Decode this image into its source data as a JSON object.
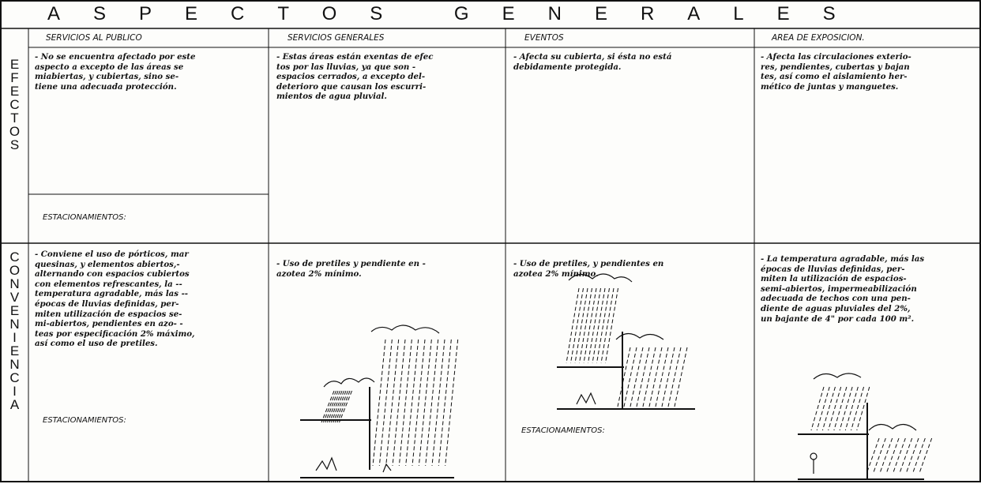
{
  "title": "ASPECTOS GENERALES",
  "headers": [
    "SERVICIOS AL PUBLICO",
    "SERVICIOS GENERALES",
    "EVENTOS",
    "AREA DE EXPOSICION."
  ],
  "rows": [
    {
      "label": "EFECTOS",
      "cells": [
        {
          "lines": [
            "- No se encuentra afectado por este",
            "aspecto a excepto de las áreas se",
            "miabiertas, y cubiertas, sino se-",
            "tiene una adecuada protección."
          ],
          "parking": "ESTACIONAMIENTOS:"
        },
        {
          "lines": [
            "- Estas áreas están exentas de efec",
            "tos por las lluvias, ya que son -",
            "espacios cerrados, a excepto del-",
            "deterioro que causan los escurri-",
            "mientos de agua pluvial."
          ]
        },
        {
          "lines": [
            "- Afecta su cubierta, si ésta no está",
            "debidamente protegida."
          ]
        },
        {
          "lines": [
            "- Afecta las circulaciones exterio-",
            "res, pendientes, cubertas y bajan",
            "tes, así como el aislamiento her-",
            "mético de juntas y manguetes."
          ]
        }
      ]
    },
    {
      "label": "CONVENIENCIA",
      "cells": [
        {
          "lines": [
            "- Conviene el uso de pórticos, mar",
            "quesinas, y elementos abiertos,-",
            "alternando con espacios cubiertos",
            "con elementos refrescantes, la --",
            "temperatura agradable, más las --",
            "épocas de lluvias definidas, per-",
            "miten utilización de espacios se-",
            "mi-abiertos, pendientes en azo- -",
            "teas por especificación 2% máximo,",
            "así como el uso de pretiles."
          ],
          "parking": "ESTACIONAMIENTOS:"
        },
        {
          "lines": [
            "- Uso de pretiles y pendiente en -",
            "azotea 2% mínimo."
          ]
        },
        {
          "lines": [
            "- Uso de pretiles, y pendientes en",
            "azotea 2% mínimo."
          ],
          "parking": "ESTACIONAMIENTOS:"
        },
        {
          "lines": [
            "- La temperatura agradable, más las",
            "épocas de lluvias definidas, per-",
            "miten la utilización de espacios-",
            "semi-abiertos, impermeabilización",
            "adecuada de techos con una pen-",
            "diente de aguas pluviales del 2%,",
            "un bajante de 4\" por cada 100 m²."
          ]
        }
      ]
    }
  ]
}
